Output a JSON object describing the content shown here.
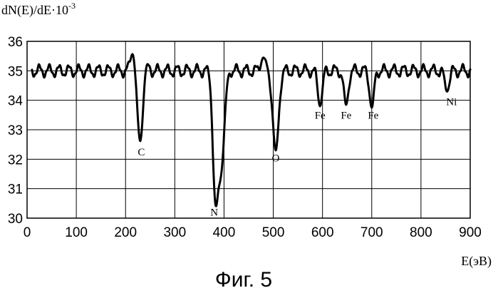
{
  "figure_caption": "Фиг. 5",
  "chart_data": {
    "type": "line",
    "title": "",
    "ylabel": "dN(E)/dE·10",
    "ylabel_exponent": "-3",
    "xlabel": "E(эВ)",
    "xlim": [
      0,
      900
    ],
    "ylim": [
      30,
      36
    ],
    "x_ticks": [
      0,
      100,
      200,
      300,
      400,
      500,
      600,
      700,
      800,
      900
    ],
    "y_ticks": [
      30,
      31,
      32,
      33,
      34,
      35,
      36
    ],
    "grid": true,
    "legend": "none",
    "line_color": "#000000",
    "baseline": 35.0,
    "wiggle_amplitude": 0.18,
    "wiggle_period_ev": 20,
    "features": [
      {
        "x": 215,
        "y": 35.65
      },
      {
        "x": 230,
        "y": 32.55
      },
      {
        "x": 240,
        "y": 35.45
      },
      {
        "x": 375,
        "y": 35.6
      },
      {
        "x": 382,
        "y": 30.6
      },
      {
        "x": 395,
        "y": 32.0
      },
      {
        "x": 405,
        "y": 35.0
      },
      {
        "x": 480,
        "y": 35.45
      },
      {
        "x": 505,
        "y": 32.3
      },
      {
        "x": 595,
        "y": 33.8
      },
      {
        "x": 648,
        "y": 33.85
      },
      {
        "x": 700,
        "y": 33.75
      },
      {
        "x": 853,
        "y": 34.3
      }
    ],
    "annotations": [
      {
        "text": "C",
        "x": 232,
        "y": 32.25
      },
      {
        "text": "N",
        "x": 380,
        "y": 30.2
      },
      {
        "text": "O",
        "x": 505,
        "y": 32.05
      },
      {
        "text": "Fe",
        "x": 595,
        "y": 33.5
      },
      {
        "text": "Fe",
        "x": 648,
        "y": 33.5
      },
      {
        "text": "Fe",
        "x": 703,
        "y": 33.5
      },
      {
        "text": "Ni",
        "x": 862,
        "y": 33.95
      }
    ]
  }
}
